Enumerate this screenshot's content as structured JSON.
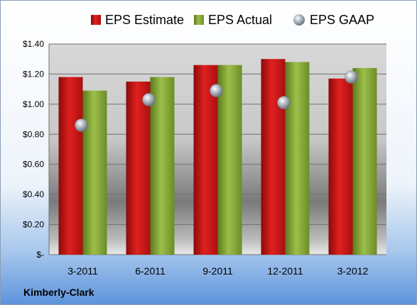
{
  "company": "Kimberly-Clark",
  "chart_data": {
    "type": "bar",
    "categories": [
      "3-2011",
      "6-2011",
      "9-2011",
      "12-2011",
      "3-2012"
    ],
    "series": [
      {
        "name": "EPS Estimate",
        "kind": "bar",
        "color": "#d01818",
        "values": [
          1.18,
          1.15,
          1.26,
          1.3,
          1.17
        ]
      },
      {
        "name": "EPS Actual",
        "kind": "bar",
        "color": "#8aad3a",
        "values": [
          1.09,
          1.18,
          1.26,
          1.28,
          1.24
        ]
      },
      {
        "name": "EPS GAAP",
        "kind": "point",
        "color": "#9aa4ae",
        "values": [
          0.86,
          1.03,
          1.09,
          1.01,
          1.18
        ]
      }
    ],
    "ylim": [
      0,
      1.4
    ],
    "yticks": [
      0,
      0.2,
      0.4,
      0.6,
      0.8,
      1.0,
      1.2,
      1.4
    ],
    "ytick_labels": [
      "$-",
      "$0.20",
      "$0.40",
      "$0.60",
      "$0.80",
      "$1.00",
      "$1.20",
      "$1.40"
    ],
    "grid": true,
    "legend_position": "top"
  }
}
